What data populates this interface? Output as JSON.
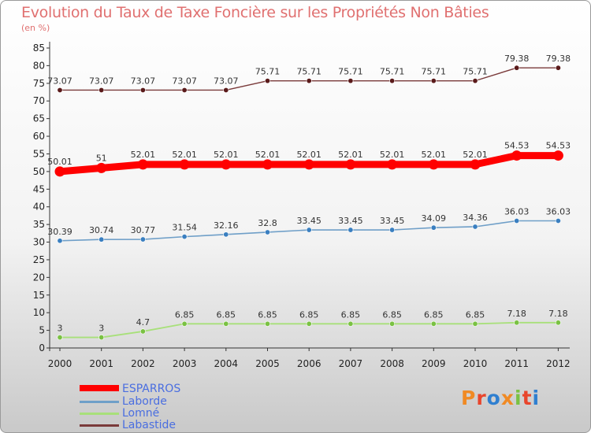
{
  "title": "Evolution du Taux de Taxe Foncière sur les Propriétés Non Bâties",
  "unit": "(en %)",
  "logo": {
    "text": "Proxiti",
    "colors": [
      "#f08a24",
      "#e8452c",
      "#2f7fd0",
      "#f08a24",
      "#7ac143",
      "#e8452c",
      "#2f7fd0"
    ]
  },
  "chart_data": {
    "type": "line",
    "title": "Evolution du Taux de Taxe Foncière sur les Propriétés Non Bâties",
    "ylabel": "(en %)",
    "ylim": [
      0,
      85
    ],
    "yticks": [
      0,
      5,
      10,
      15,
      20,
      25,
      30,
      35,
      40,
      45,
      50,
      55,
      60,
      65,
      70,
      75,
      80,
      85
    ],
    "x": [
      "2000",
      "2001",
      "2002",
      "2003",
      "2004",
      "2005",
      "2006",
      "2007",
      "2008",
      "2009",
      "2010",
      "2011",
      "2012"
    ],
    "series": [
      {
        "name": "ESPARROS",
        "color": "#ff0000",
        "values": [
          50.01,
          51,
          52.01,
          52.01,
          52.01,
          52.01,
          52.01,
          52.01,
          52.01,
          52.01,
          52.01,
          54.53,
          54.53
        ],
        "labels": [
          "50.01",
          "51",
          "52.01",
          "52.01",
          "52.01",
          "52.01",
          "52.01",
          "52.01",
          "52.01",
          "52.01",
          "52.01",
          "54.53",
          "54.53"
        ]
      },
      {
        "name": "Laborde",
        "color": "#6f9fc8",
        "values": [
          30.39,
          30.74,
          30.77,
          31.54,
          32.16,
          32.8,
          33.45,
          33.45,
          33.45,
          34.09,
          34.36,
          36.03,
          36.03
        ],
        "labels": [
          "30.39",
          "30.74",
          "30.77",
          "31.54",
          "32.16",
          "32.8",
          "33.45",
          "33.45",
          "33.45",
          "34.09",
          "34.36",
          "36.03",
          "36.03"
        ]
      },
      {
        "name": "Lomné",
        "color": "#a8e07a",
        "values": [
          3,
          3,
          4.7,
          6.85,
          6.85,
          6.85,
          6.85,
          6.85,
          6.85,
          6.85,
          6.85,
          7.18,
          7.18
        ],
        "labels": [
          "3",
          "3",
          "4.7",
          "6.85",
          "6.85",
          "6.85",
          "6.85",
          "6.85",
          "6.85",
          "6.85",
          "6.85",
          "7.18",
          "7.18"
        ]
      },
      {
        "name": "Labastide",
        "color": "#7a3a3a",
        "values": [
          73.07,
          73.07,
          73.07,
          73.07,
          73.07,
          75.71,
          75.71,
          75.71,
          75.71,
          75.71,
          75.71,
          79.38,
          79.38
        ],
        "labels": [
          "73.07",
          "73.07",
          "73.07",
          "73.07",
          "73.07",
          "75.71",
          "75.71",
          "75.71",
          "75.71",
          "75.71",
          "75.71",
          "79.38",
          "79.38"
        ]
      }
    ],
    "legend": "bottom-left",
    "grid": false
  }
}
